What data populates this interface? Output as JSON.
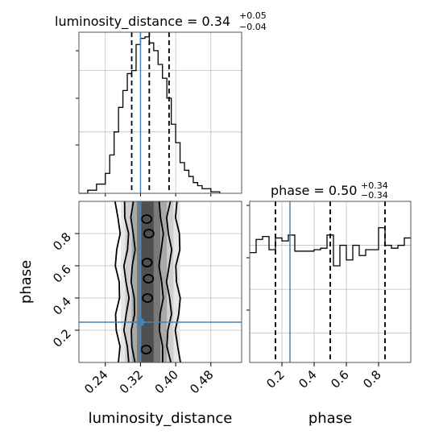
{
  "chart_data": [
    {
      "type": "histogram",
      "panel": "luminosity_distance marginal",
      "title": {
        "name": "luminosity_distance",
        "value": "0.34",
        "plus": "+0.05",
        "minus": "−0.04"
      },
      "xlim": [
        0.18,
        0.55
      ],
      "bin_edges": [
        0.18,
        0.2,
        0.22,
        0.24,
        0.25,
        0.26,
        0.27,
        0.28,
        0.29,
        0.3,
        0.31,
        0.32,
        0.33,
        0.34,
        0.35,
        0.36,
        0.37,
        0.38,
        0.39,
        0.4,
        0.41,
        0.42,
        0.43,
        0.44,
        0.45,
        0.46,
        0.48,
        0.5
      ],
      "values": [
        0,
        2,
        6,
        13,
        25,
        40,
        56,
        67,
        78,
        80,
        97,
        101,
        102,
        98,
        93,
        84,
        75,
        62,
        45,
        33,
        20,
        15,
        11,
        7,
        5,
        3,
        1
      ],
      "quantile_lines": [
        0.3,
        0.34,
        0.385
      ],
      "truth": 0.32
    },
    {
      "type": "2d_histogram_contour",
      "panel": "phase vs luminosity_distance",
      "xlabel": "luminosity_distance",
      "ylabel": "phase",
      "xlim": [
        0.18,
        0.55
      ],
      "ylim": [
        0.0,
        1.0
      ],
      "xticks": [
        "0.24",
        "0.32",
        "0.40",
        "0.48"
      ],
      "yticks": [
        "0.2",
        "0.4",
        "0.6",
        "0.8"
      ],
      "truth": {
        "x": 0.32,
        "y": 0.25
      }
    },
    {
      "type": "histogram",
      "panel": "phase marginal",
      "title": {
        "name": "phase",
        "value": "0.50",
        "plus": "+0.34",
        "minus": "−0.34"
      },
      "xlabel": "phase",
      "xlim": [
        0.0,
        1.0
      ],
      "xticks": [
        "0.2",
        "0.4",
        "0.6",
        "0.8"
      ],
      "bin_edges": [
        0.0,
        0.04,
        0.08,
        0.12,
        0.16,
        0.2,
        0.24,
        0.28,
        0.32,
        0.36,
        0.4,
        0.44,
        0.48,
        0.52,
        0.56,
        0.6,
        0.64,
        0.68,
        0.72,
        0.76,
        0.8,
        0.84,
        0.88,
        0.92,
        0.96,
        1.0
      ],
      "values": [
        75,
        84,
        86,
        77,
        85,
        83,
        87,
        76,
        76,
        76,
        77,
        78,
        87,
        66,
        80,
        70,
        80,
        73,
        77,
        77,
        92,
        80,
        78,
        80,
        85
      ],
      "quantile_lines": [
        0.16,
        0.5,
        0.84
      ],
      "truth": 0.25
    }
  ],
  "colors": {
    "truth": "#4682b4",
    "line": "#000000",
    "grid": "#bfbfbf",
    "frame": "#555555"
  }
}
